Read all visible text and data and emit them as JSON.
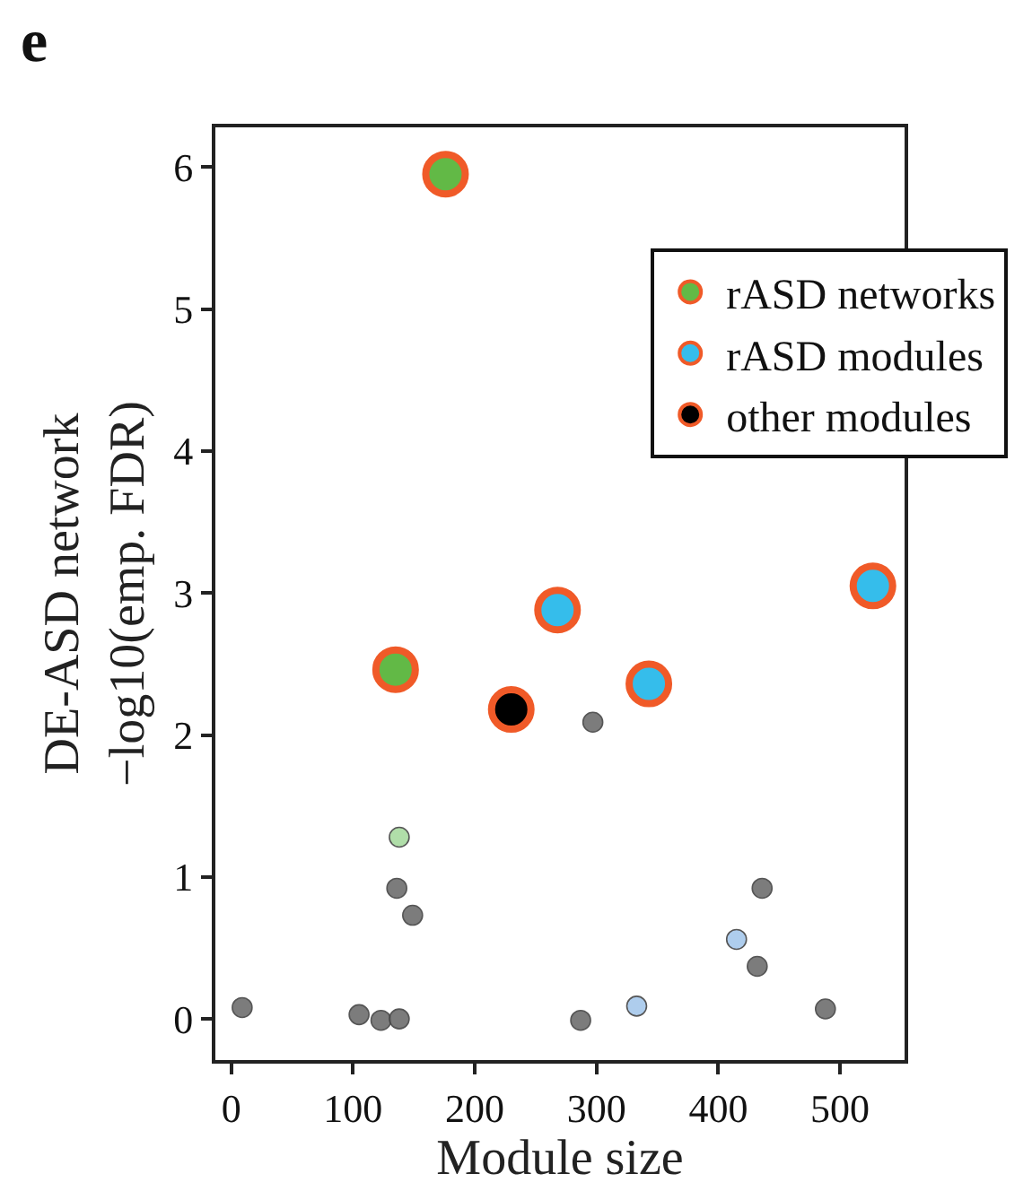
{
  "chart_data": {
    "type": "scatter",
    "title": "e",
    "xlabel": "Module size",
    "ylabel": "DE-ASD network\n−log10(emp. FDR)",
    "xlim": [
      -13,
      553
    ],
    "xticks": [
      0,
      100,
      200,
      300,
      400,
      500
    ],
    "ylim": [
      -0.29,
      6.28
    ],
    "yticks": [
      0,
      1,
      2,
      3,
      4,
      5,
      6
    ],
    "grid": false,
    "legend": "top right",
    "marker": "circle",
    "series": [
      {
        "name": "rASD networks",
        "color": "#62b946",
        "x": [
          176,
          135
        ],
        "values": [
          5.95,
          2.46
        ]
      },
      {
        "name": "rASD modules",
        "color": "#35bdeb",
        "x": [
          268,
          343,
          527
        ],
        "values": [
          2.88,
          2.36,
          3.05
        ]
      },
      {
        "name": "other modules",
        "color": "#000000",
        "x": [
          230
        ],
        "values": [
          2.18
        ]
      },
      {
        "color": "#a8dba0",
        "x": [
          138
        ],
        "values": [
          1.28
        ]
      },
      {
        "color": "#a6c8ec",
        "x": [
          415,
          333
        ],
        "values": [
          0.56,
          0.09
        ]
      },
      {
        "color": "#6e6e6e",
        "x": [
          297,
          136,
          149,
          436,
          432,
          9,
          105,
          123,
          138,
          287,
          488
        ],
        "values": [
          2.09,
          0.92,
          0.73,
          0.92,
          0.37,
          0.08,
          0.03,
          -0.01,
          0.0,
          -0.01,
          0.07
        ]
      }
    ]
  }
}
